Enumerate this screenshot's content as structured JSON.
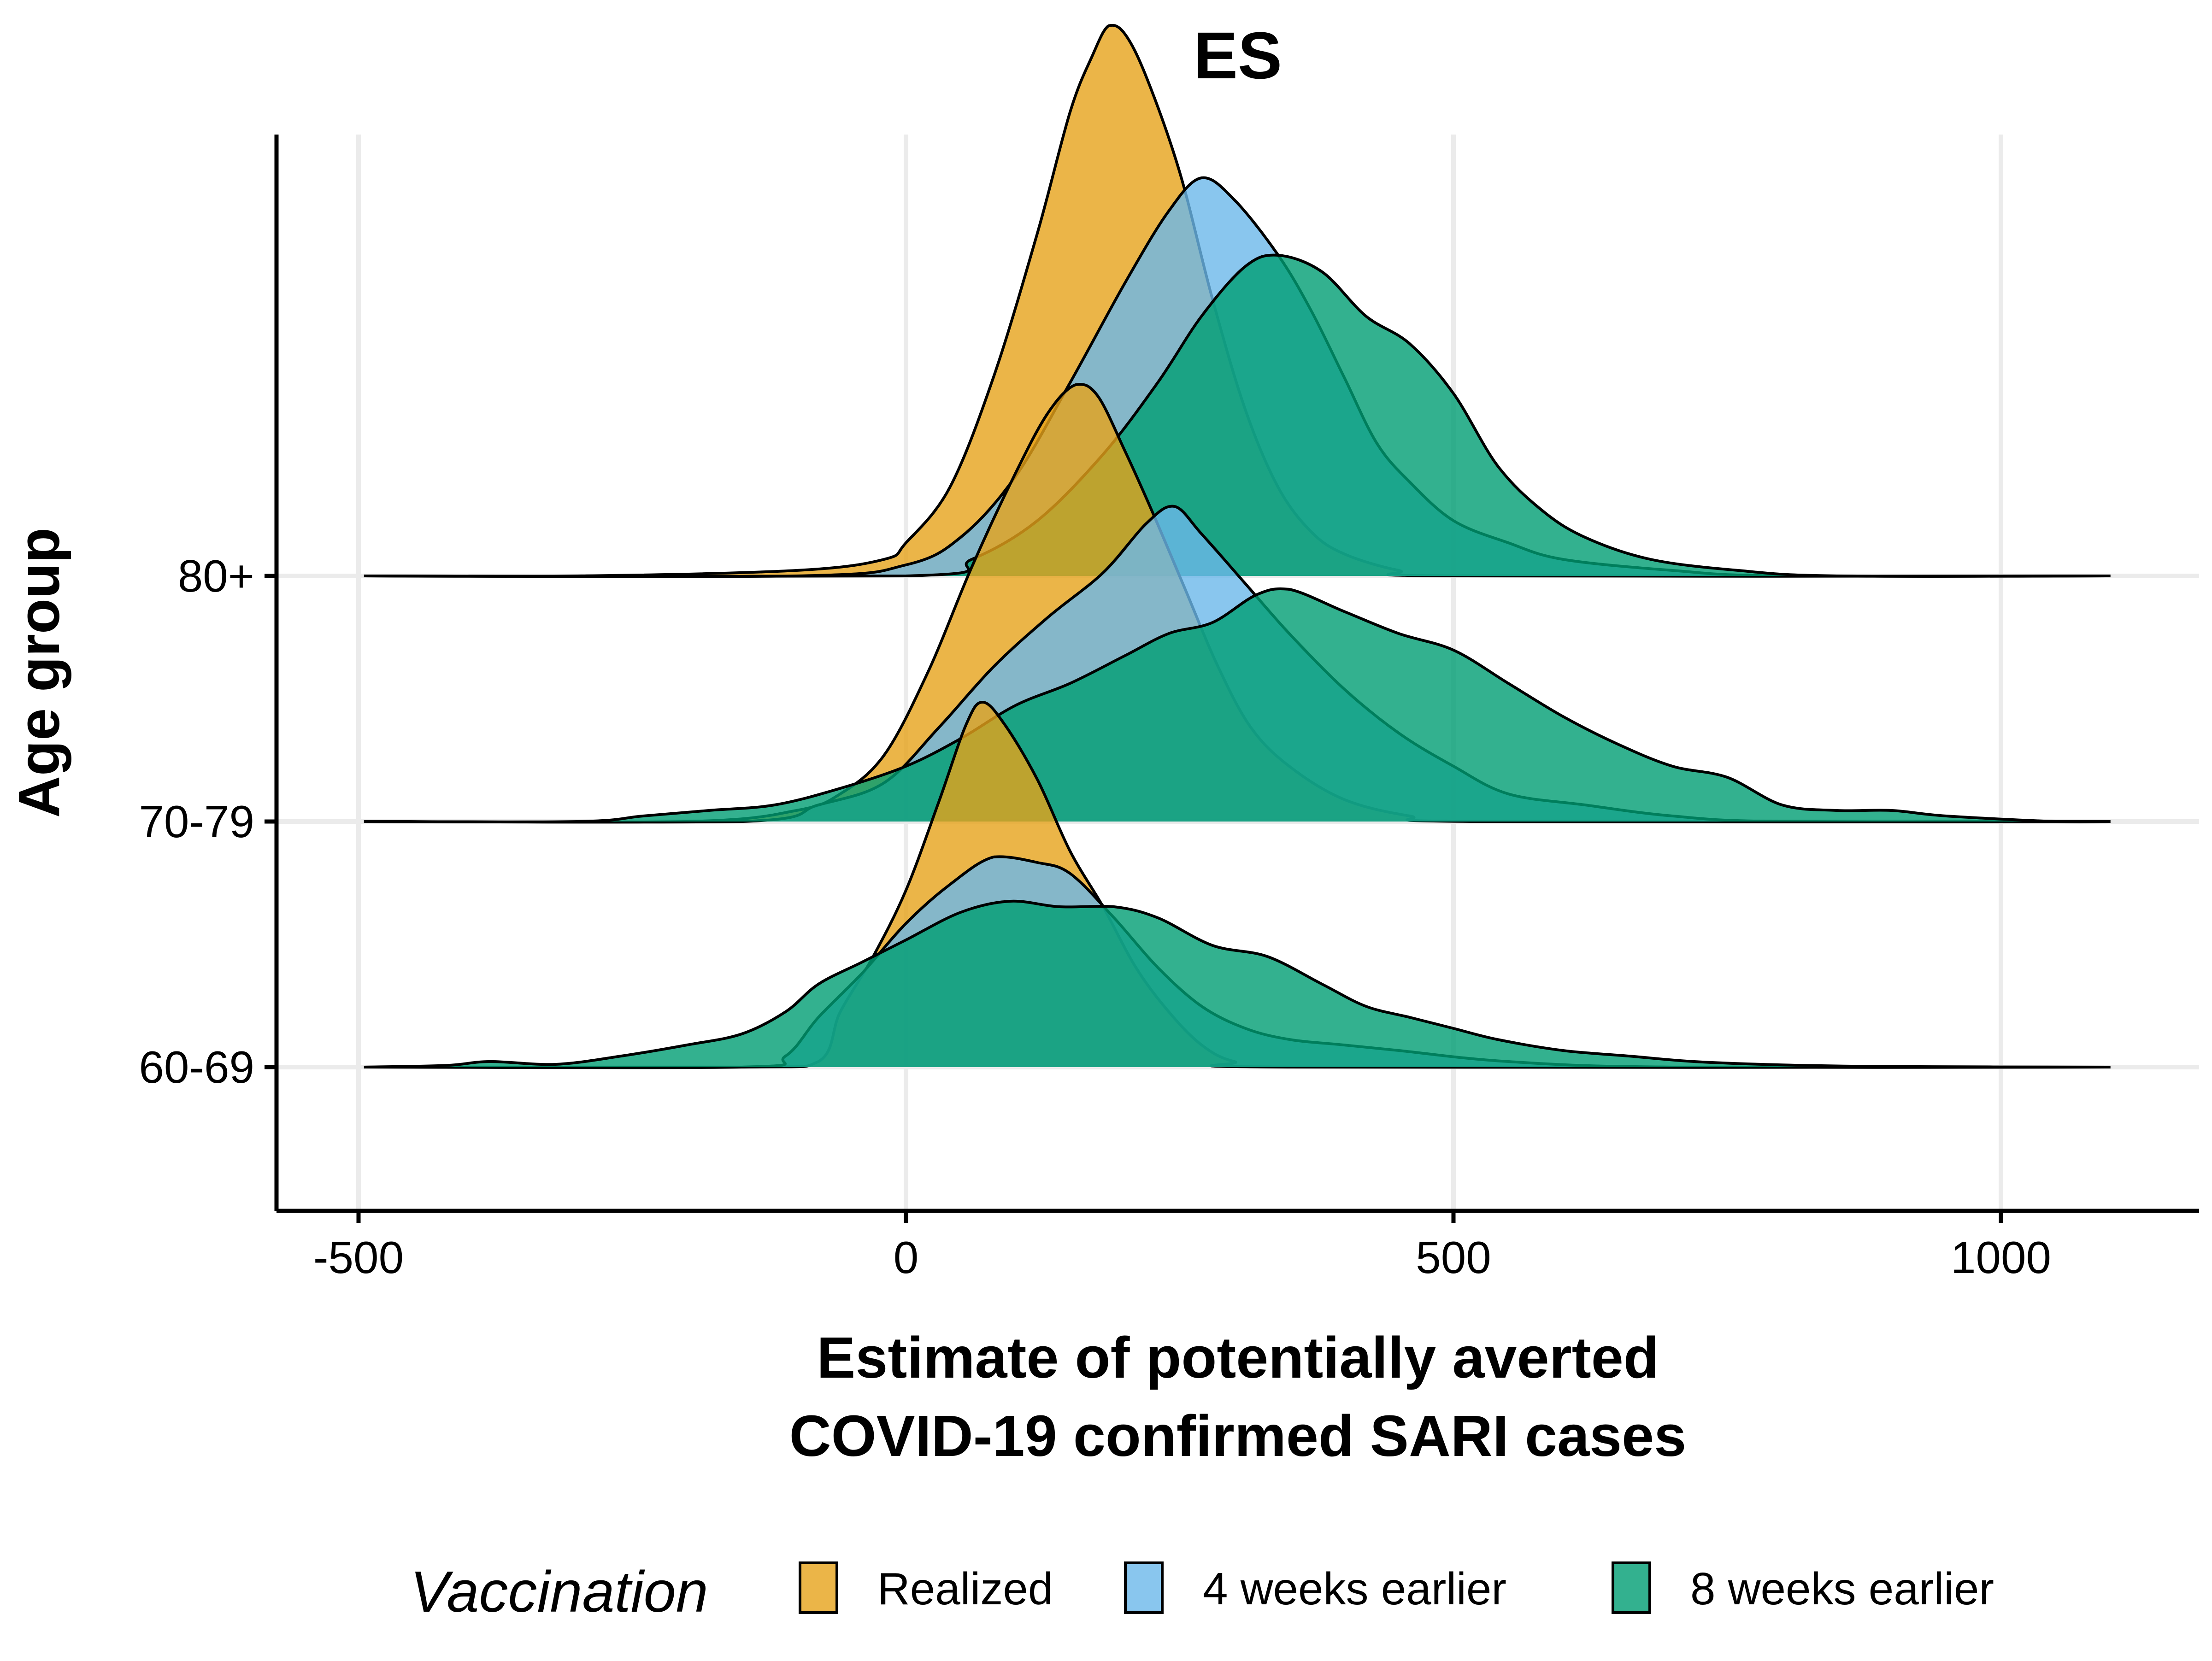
{
  "chart_data": {
    "type": "ridgeline",
    "title": "ES",
    "xlabel": [
      "Estimate of potentially averted",
      "COVID-19 confirmed SARI cases"
    ],
    "ylabel": "Age group",
    "xlim": [
      -500,
      1100
    ],
    "x_ticks": [
      -500,
      0,
      500,
      1000
    ],
    "x_tick_labels": [
      "-500",
      "0",
      "500",
      "1000"
    ],
    "grid": true,
    "legend": {
      "title": "Vaccination",
      "position": "bottom",
      "entries": [
        "Realized",
        "4 weeks earlier",
        "8 weeks earlier"
      ]
    },
    "colors": {
      "Realized": "#E6A31A",
      "4 weeks earlier": "#6BB8EA",
      "8 weeks earlier": "#009E73"
    },
    "fill_opacity": 0.8,
    "groups": [
      {
        "name": "80+",
        "series": [
          {
            "name": "Realized",
            "points": [
              [
                -495,
                0
              ],
              [
                -300,
                0
              ],
              [
                -100,
                0.01
              ],
              [
                -20,
                0.03
              ],
              [
                0,
                0.06
              ],
              [
                40,
                0.16
              ],
              [
                80,
                0.36
              ],
              [
                120,
                0.62
              ],
              [
                150,
                0.84
              ],
              [
                170,
                0.94
              ],
              [
                185,
                0.995
              ],
              [
                200,
                0.98
              ],
              [
                220,
                0.9
              ],
              [
                250,
                0.73
              ],
              [
                280,
                0.5
              ],
              [
                310,
                0.3
              ],
              [
                340,
                0.16
              ],
              [
                370,
                0.08
              ],
              [
                400,
                0.04
              ],
              [
                450,
                0.01
              ],
              [
                500,
                0
              ],
              [
                1100,
                0
              ]
            ]
          },
          {
            "name": "4 weeks earlier",
            "points": [
              [
                -495,
                0
              ],
              [
                -100,
                0
              ],
              [
                0,
                0.02
              ],
              [
                50,
                0.07
              ],
              [
                100,
                0.18
              ],
              [
                150,
                0.35
              ],
              [
                200,
                0.53
              ],
              [
                240,
                0.66
              ],
              [
                270,
                0.72
              ],
              [
                300,
                0.68
              ],
              [
                340,
                0.58
              ],
              [
                370,
                0.48
              ],
              [
                400,
                0.36
              ],
              [
                430,
                0.24
              ],
              [
                460,
                0.17
              ],
              [
                500,
                0.1
              ],
              [
                550,
                0.06
              ],
              [
                600,
                0.03
              ],
              [
                700,
                0.01
              ],
              [
                800,
                0
              ],
              [
                1100,
                0
              ]
            ]
          },
          {
            "name": "8 weeks earlier",
            "points": [
              [
                -495,
                0
              ],
              [
                0,
                0
              ],
              [
                60,
                0.03
              ],
              [
                120,
                0.1
              ],
              [
                180,
                0.22
              ],
              [
                230,
                0.35
              ],
              [
                270,
                0.47
              ],
              [
                310,
                0.56
              ],
              [
                340,
                0.58
              ],
              [
                380,
                0.55
              ],
              [
                420,
                0.47
              ],
              [
                460,
                0.42
              ],
              [
                500,
                0.33
              ],
              [
                540,
                0.2
              ],
              [
                580,
                0.12
              ],
              [
                620,
                0.07
              ],
              [
                680,
                0.03
              ],
              [
                760,
                0.01
              ],
              [
                850,
                0
              ],
              [
                1100,
                0
              ]
            ]
          }
        ]
      },
      {
        "name": "70-79",
        "series": [
          {
            "name": "Realized",
            "points": [
              [
                -495,
                0
              ],
              [
                -200,
                0
              ],
              [
                -100,
                0.02
              ],
              [
                -60,
                0.05
              ],
              [
                -20,
                0.12
              ],
              [
                20,
                0.27
              ],
              [
                60,
                0.46
              ],
              [
                100,
                0.63
              ],
              [
                130,
                0.74
              ],
              [
                155,
                0.79
              ],
              [
                175,
                0.77
              ],
              [
                200,
                0.67
              ],
              [
                225,
                0.56
              ],
              [
                255,
                0.42
              ],
              [
                285,
                0.28
              ],
              [
                315,
                0.17
              ],
              [
                350,
                0.1
              ],
              [
                400,
                0.04
              ],
              [
                460,
                0.01
              ],
              [
                520,
                0
              ],
              [
                1100,
                0
              ]
            ]
          },
          {
            "name": "4 weeks earlier",
            "points": [
              [
                -495,
                0
              ],
              [
                -150,
                0
              ],
              [
                -80,
                0.03
              ],
              [
                -20,
                0.07
              ],
              [
                30,
                0.17
              ],
              [
                80,
                0.28
              ],
              [
                130,
                0.37
              ],
              [
                180,
                0.45
              ],
              [
                220,
                0.54
              ],
              [
                245,
                0.57
              ],
              [
                270,
                0.52
              ],
              [
                310,
                0.43
              ],
              [
                350,
                0.34
              ],
              [
                400,
                0.24
              ],
              [
                450,
                0.16
              ],
              [
                500,
                0.1
              ],
              [
                550,
                0.05
              ],
              [
                620,
                0.03
              ],
              [
                700,
                0.01
              ],
              [
                800,
                0
              ],
              [
                1100,
                0
              ]
            ]
          },
          {
            "name": "8 weeks earlier",
            "points": [
              [
                -495,
                0
              ],
              [
                -300,
                0
              ],
              [
                -240,
                0.01
              ],
              [
                -180,
                0.02
              ],
              [
                -120,
                0.03
              ],
              [
                -60,
                0.06
              ],
              [
                0,
                0.1
              ],
              [
                50,
                0.15
              ],
              [
                100,
                0.21
              ],
              [
                150,
                0.25
              ],
              [
                200,
                0.3
              ],
              [
                240,
                0.34
              ],
              [
                280,
                0.36
              ],
              [
                320,
                0.41
              ],
              [
                350,
                0.42
              ],
              [
                400,
                0.38
              ],
              [
                450,
                0.34
              ],
              [
                500,
                0.31
              ],
              [
                550,
                0.25
              ],
              [
                600,
                0.19
              ],
              [
                650,
                0.14
              ],
              [
                700,
                0.1
              ],
              [
                750,
                0.08
              ],
              [
                800,
                0.03
              ],
              [
                850,
                0.02
              ],
              [
                900,
                0.02
              ],
              [
                950,
                0.01
              ],
              [
                1050,
                0
              ],
              [
                1100,
                0
              ]
            ]
          }
        ]
      },
      {
        "name": "60-69",
        "series": [
          {
            "name": "Realized",
            "points": [
              [
                -495,
                0
              ],
              [
                -150,
                0
              ],
              [
                -80,
                0.01
              ],
              [
                -60,
                0.1
              ],
              [
                -30,
                0.2
              ],
              [
                0,
                0.32
              ],
              [
                30,
                0.48
              ],
              [
                55,
                0.62
              ],
              [
                70,
                0.66
              ],
              [
                90,
                0.62
              ],
              [
                120,
                0.52
              ],
              [
                150,
                0.39
              ],
              [
                180,
                0.29
              ],
              [
                210,
                0.18
              ],
              [
                240,
                0.1
              ],
              [
                270,
                0.04
              ],
              [
                300,
                0.01
              ],
              [
                350,
                0
              ],
              [
                1100,
                0
              ]
            ]
          },
          {
            "name": "4 weeks earlier",
            "points": [
              [
                -495,
                0
              ],
              [
                -150,
                0
              ],
              [
                -110,
                0.02
              ],
              [
                -80,
                0.09
              ],
              [
                -40,
                0.17
              ],
              [
                0,
                0.26
              ],
              [
                40,
                0.33
              ],
              [
                80,
                0.38
              ],
              [
                120,
                0.37
              ],
              [
                150,
                0.35
              ],
              [
                190,
                0.27
              ],
              [
                230,
                0.18
              ],
              [
                270,
                0.11
              ],
              [
                310,
                0.07
              ],
              [
                350,
                0.05
              ],
              [
                400,
                0.04
              ],
              [
                450,
                0.03
              ],
              [
                550,
                0.01
              ],
              [
                700,
                0
              ],
              [
                1100,
                0
              ]
            ]
          },
          {
            "name": "8 weeks earlier",
            "points": [
              [
                -495,
                0
              ],
              [
                -420,
                0.003
              ],
              [
                -380,
                0.01
              ],
              [
                -320,
                0.005
              ],
              [
                -260,
                0.02
              ],
              [
                -200,
                0.04
              ],
              [
                -150,
                0.06
              ],
              [
                -110,
                0.1
              ],
              [
                -80,
                0.15
              ],
              [
                -40,
                0.19
              ],
              [
                0,
                0.23
              ],
              [
                50,
                0.28
              ],
              [
                95,
                0.3
              ],
              [
                140,
                0.29
              ],
              [
                190,
                0.29
              ],
              [
                230,
                0.27
              ],
              [
                280,
                0.22
              ],
              [
                330,
                0.2
              ],
              [
                380,
                0.15
              ],
              [
                420,
                0.11
              ],
              [
                460,
                0.09
              ],
              [
                500,
                0.07
              ],
              [
                540,
                0.05
              ],
              [
                600,
                0.03
              ],
              [
                660,
                0.02
              ],
              [
                720,
                0.01
              ],
              [
                800,
                0.004
              ],
              [
                900,
                0.001
              ],
              [
                1100,
                0
              ]
            ]
          }
        ]
      }
    ]
  }
}
